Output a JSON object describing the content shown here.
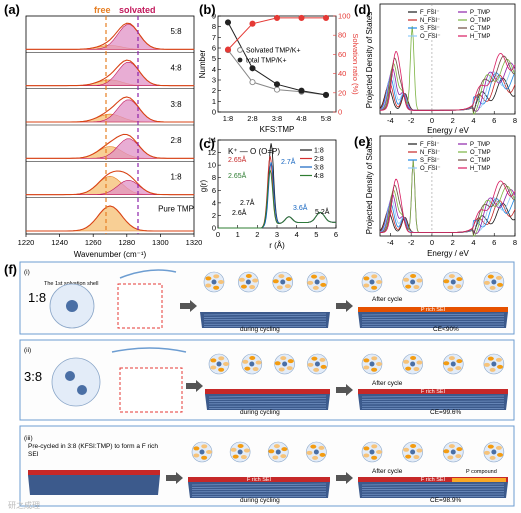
{
  "panel_labels": {
    "a": "(a)",
    "b": "(b)",
    "c": "(c)",
    "d": "(d)",
    "e": "(e)",
    "f": "(f)"
  },
  "panel_a": {
    "header_free": "free",
    "header_solvated": "solvated",
    "row_labels": [
      "5:8",
      "4:8",
      "3:8",
      "2:8",
      "1:8",
      "Pure TMP"
    ],
    "xlabel": "Wavenumber (cm⁻¹)",
    "xticks": [
      "1220",
      "1240",
      "1260",
      "1280",
      "1300",
      "1320"
    ]
  },
  "chart_data": [
    {
      "type": "line",
      "panel": "b",
      "categories": [
        "1:8",
        "2:8",
        "3:8",
        "4:8",
        "5:8"
      ],
      "xlabel": "KFS:TMP",
      "ylabel": "Number",
      "y2label": "Solvation ratio (%)",
      "ylim": [
        0,
        9
      ],
      "y2lim": [
        0,
        100
      ],
      "yticks": [
        "0",
        "1",
        "2",
        "3",
        "4",
        "5",
        "6",
        "7",
        "8",
        "9"
      ],
      "y2ticks": [
        "0",
        "20",
        "40",
        "60",
        "80",
        "100"
      ],
      "series": [
        {
          "name": "Solvated TMP/K+",
          "values": [
            5.8,
            2.8,
            2.1,
            1.9,
            1.6
          ],
          "color": "#888888"
        },
        {
          "name": "total TMP/K+",
          "values": [
            8.4,
            4.1,
            2.6,
            2.0,
            1.6
          ],
          "color": "#222222"
        },
        {
          "name": "",
          "values": [
            65,
            92,
            98,
            98,
            98
          ],
          "color": "#e53935",
          "axis": "right"
        }
      ]
    },
    {
      "type": "line",
      "panel": "c",
      "title": "K⁺ — O (O=P)",
      "xlabel": "r (Å)",
      "ylabel": "g(r)",
      "xlim": [
        0,
        6
      ],
      "ylim": [
        0,
        14
      ],
      "xticks": [
        "0",
        "1",
        "2",
        "3",
        "4",
        "5",
        "6"
      ],
      "yticks": [
        "0",
        "2",
        "4",
        "6",
        "8",
        "10",
        "12",
        "14"
      ],
      "series": [
        {
          "name": "1:8",
          "color": "#1a1a1a",
          "peak_r": 2.7,
          "peak": 13.0
        },
        {
          "name": "2:8",
          "color": "#d32f2f",
          "peak_r": 2.65,
          "peak": 11.0
        },
        {
          "name": "3:8",
          "color": "#1565c0",
          "peak_r": 2.7,
          "peak": 10.0
        },
        {
          "name": "4:8",
          "color": "#2e7d32",
          "peak_r": 2.65,
          "peak": 8.8
        }
      ],
      "annotations": [
        "2.65Å",
        "2.7Å",
        "2.65Å",
        "2.7Å",
        "2.6Å",
        "3.6Å",
        "5.2Å"
      ]
    },
    {
      "type": "line",
      "panel": "d",
      "xlabel": "Energy / eV",
      "ylabel": "Projected Density of States",
      "xticks": [
        "-4",
        "-2",
        "0",
        "2",
        "4",
        "6",
        "8"
      ],
      "legend": [
        "F_FSI⁻",
        "N_FSI⁻",
        "S_FSI⁻",
        "O_FSI⁻",
        "P_TMP",
        "O_TMP",
        "C_TMP",
        "H_TMP"
      ]
    },
    {
      "type": "line",
      "panel": "e",
      "xlabel": "Energy / eV",
      "ylabel": "Projected Density of States",
      "xticks": [
        "-4",
        "-2",
        "0",
        "2",
        "4",
        "6",
        "8"
      ],
      "legend": [
        "F_FSI⁻",
        "N_FSI⁻",
        "S_FSI⁻",
        "O_FSI⁻",
        "P_TMP",
        "O_TMP",
        "C_TMP",
        "H_TMP"
      ]
    }
  ],
  "panel_f": {
    "rows": [
      {
        "roman": "(i)",
        "ratio": "1:8",
        "shell_label": "The 1st solvation shell",
        "during": "during cycling",
        "after": "After cycle",
        "sei": "P rich SEI",
        "ce": "CE<90%"
      },
      {
        "roman": "(ii)",
        "ratio": "3:8",
        "during": "during cycling",
        "after": "After cycle",
        "sei": "F rich SEI",
        "ce": "CE=99.6%"
      },
      {
        "roman": "(iii)",
        "note": "Pre-cycled in 3:8 (KFSI:TMP) to form a F rich SEI",
        "during": "during cycling",
        "after": "After cycle",
        "sei_mid": "F rich SEI",
        "sei": "F rich SEI",
        "pcomp": "P compound",
        "ce": "CE=98.9%"
      }
    ]
  },
  "watermark": "研之成理"
}
